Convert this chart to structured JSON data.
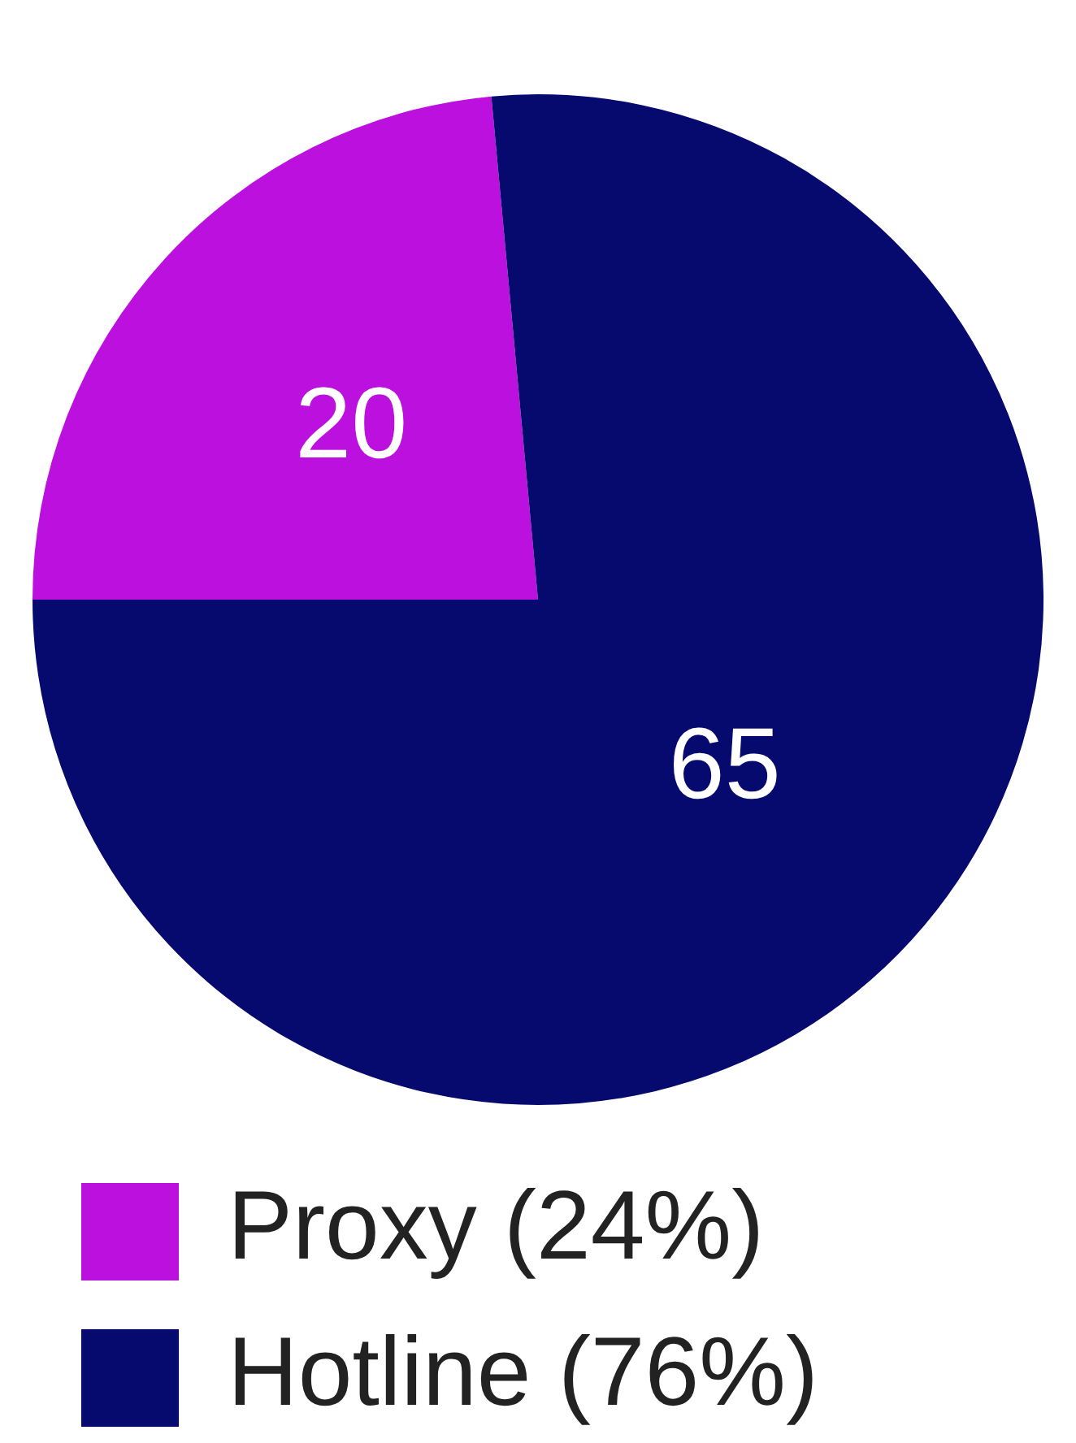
{
  "chart_data": {
    "type": "pie",
    "categories": [
      "Proxy (24%)",
      "Hotline (76%)"
    ],
    "values": [
      20,
      65
    ],
    "colors": [
      "#bb10de",
      "#060a6e"
    ],
    "data_labels": true,
    "legend": "bottom"
  }
}
